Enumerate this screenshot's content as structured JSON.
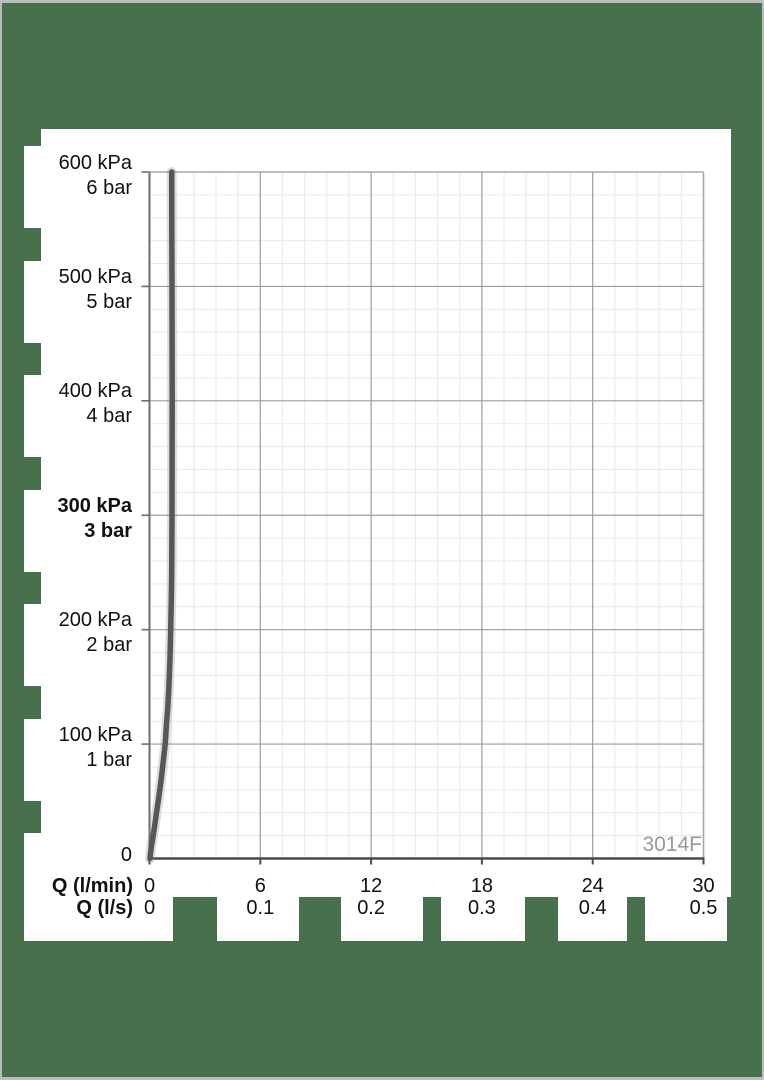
{
  "frame": {
    "background": "#47714d",
    "border_color": "#bdbdbd",
    "panel_color": "#ffffff",
    "text_color": "#111111",
    "watermark_color": "#9a9a9a"
  },
  "chart_data": {
    "type": "line",
    "title": "",
    "watermark": "3014F",
    "x_axis": {
      "min": 0,
      "max": 30,
      "major_step": 6,
      "minor_step": 1.2,
      "rows": [
        {
          "name": "Q (l/min)",
          "bold": true,
          "ticks": [
            "0",
            "6",
            "12",
            "18",
            "24",
            "30"
          ]
        },
        {
          "name": "Q (l/s)",
          "bold": true,
          "ticks": [
            "0",
            "0.1",
            "0.2",
            "0.3",
            "0.4",
            "0.5"
          ]
        }
      ]
    },
    "y_axis": {
      "min": 0,
      "max": 600,
      "major_step": 100,
      "minor_step": 20,
      "unit_primary": "kPa",
      "unit_secondary": "bar",
      "zero_label": "0",
      "ticks": [
        {
          "value": 600,
          "line1": "600 kPa",
          "line2": "6 bar",
          "bold": false
        },
        {
          "value": 500,
          "line1": "500 kPa",
          "line2": "5 bar",
          "bold": false
        },
        {
          "value": 400,
          "line1": "400 kPa",
          "line2": "4 bar",
          "bold": false
        },
        {
          "value": 300,
          "line1": "300 kPa",
          "line2": "3 bar",
          "bold": true
        },
        {
          "value": 200,
          "line1": "200 kPa",
          "line2": "2 bar",
          "bold": false
        },
        {
          "value": 100,
          "line1": "100 kPa",
          "line2": "1 bar",
          "bold": false
        }
      ]
    },
    "grid": {
      "minor_color": "#e9e9e9",
      "major_color": "#9c9c9c",
      "top_right_border_color": "#a8a8a8",
      "left_axis_color": "#6e6e6e",
      "bottom_axis_color": "#4a4a4a"
    },
    "series": [
      {
        "name": "pressure-flow-curve",
        "color": "#575757",
        "halo_color": "#8a8a8a",
        "points_kpa_lmin": [
          [
            0,
            0.02
          ],
          [
            10,
            0.1
          ],
          [
            20,
            0.2
          ],
          [
            30,
            0.29
          ],
          [
            40,
            0.38
          ],
          [
            50,
            0.47
          ],
          [
            60,
            0.56
          ],
          [
            70,
            0.64
          ],
          [
            80,
            0.71
          ],
          [
            90,
            0.78
          ],
          [
            100,
            0.85
          ],
          [
            115,
            0.91
          ],
          [
            130,
            0.98
          ],
          [
            150,
            1.05
          ],
          [
            175,
            1.11
          ],
          [
            200,
            1.15
          ],
          [
            225,
            1.18
          ],
          [
            250,
            1.2
          ],
          [
            300,
            1.22
          ],
          [
            350,
            1.225
          ],
          [
            400,
            1.23
          ],
          [
            450,
            1.225
          ],
          [
            500,
            1.22
          ],
          [
            550,
            1.21
          ],
          [
            600,
            1.2
          ]
        ]
      }
    ],
    "legend": null
  }
}
